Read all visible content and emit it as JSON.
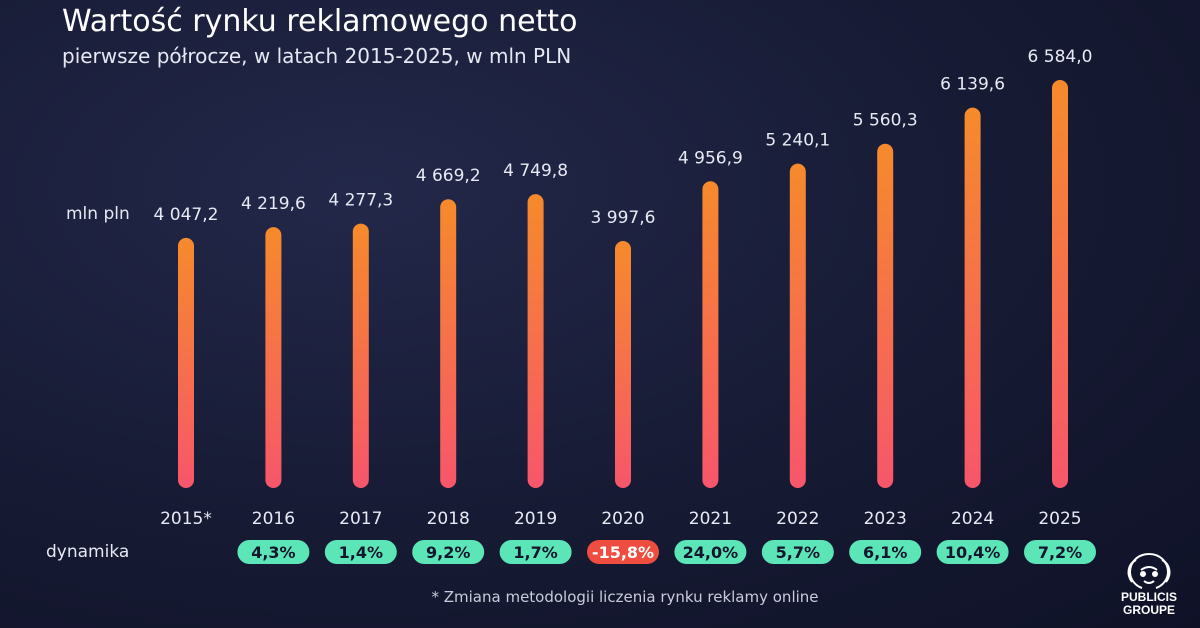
{
  "header": {
    "title": "Wartość rynku reklamowego netto",
    "subtitle": "pierwsze półrocze, w latach 2015-2025, w mln PLN"
  },
  "labels": {
    "unit": "mln pln",
    "dynamics": "dynamika"
  },
  "chart_data": {
    "type": "bar",
    "title": "Wartość rynku reklamowego netto",
    "subtitle": "pierwsze półrocze, w latach 2015-2025, w mln PLN",
    "ylabel": "mln pln",
    "categories": [
      "2015*",
      "2016",
      "2017",
      "2018",
      "2019",
      "2020",
      "2021",
      "2022",
      "2023",
      "2024",
      "2025"
    ],
    "values": [
      4047.2,
      4219.6,
      4277.3,
      4669.2,
      4749.8,
      3997.6,
      4956.9,
      5240.1,
      5560.3,
      6139.6,
      6584.0
    ],
    "value_labels": [
      "4 047,2",
      "4 219,6",
      "4 277,3",
      "4 669,2",
      "4 749,8",
      "3 997,6",
      "4 956,9",
      "5 240,1",
      "5 560,3",
      "6 139,6",
      "6 584,0"
    ],
    "dynamics": [
      null,
      4.3,
      1.4,
      9.2,
      1.7,
      -15.8,
      24.0,
      5.7,
      6.1,
      10.4,
      7.2
    ],
    "dynamics_labels": [
      "",
      "4,3%",
      "1,4%",
      "9,2%",
      "1,7%",
      "-15,8%",
      "24,0%",
      "5,7%",
      "6,1%",
      "10,4%",
      "7,2%"
    ],
    "colors": {
      "bar_top": "#f68a2b",
      "bar_bottom": "#f7566b",
      "positive_badge": "#5ce6b8",
      "negative_badge": "#ee4d3f"
    },
    "grid": false,
    "legend": "none"
  },
  "footnote": "* Zmiana metodologii liczenia rynku reklamy online",
  "logo": {
    "line1": "PUBLICIS",
    "line2": "GROUPE",
    "icon": "lion-head-icon"
  }
}
